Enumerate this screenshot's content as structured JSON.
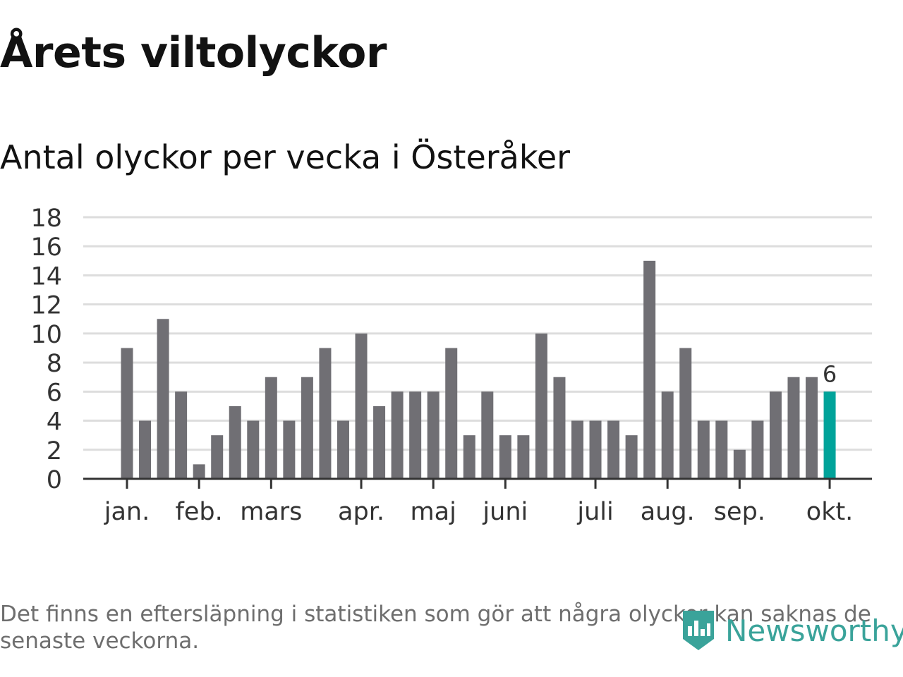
{
  "title": "Årets viltolyckor",
  "subtitle": "Antal olyckor per vecka i Österåker",
  "footnote": "Det finns en eftersläpning i statistiken som gör att några olyckor kan saknas de senaste veckorna.",
  "brand": "Newsworthy",
  "icons": {
    "brand_logo": "bar-chart-badge-icon"
  },
  "colors": {
    "bar": "#706f74",
    "highlight": "#00a39a",
    "grid": "#dddddd",
    "axis": "#333333"
  },
  "chart_data": {
    "type": "bar",
    "title": "Antal olyckor per vecka i Österåker",
    "xlabel": "",
    "ylabel": "",
    "ylim": [
      0,
      18
    ],
    "yticks": [
      "0",
      "2",
      "4",
      "6",
      "8",
      "10",
      "12",
      "14",
      "16",
      "18"
    ],
    "grid": true,
    "values": [
      9,
      4,
      11,
      6,
      1,
      3,
      5,
      4,
      7,
      4,
      7,
      9,
      4,
      10,
      5,
      6,
      6,
      6,
      9,
      3,
      6,
      3,
      3,
      10,
      7,
      4,
      4,
      4,
      3,
      15,
      6,
      9,
      4,
      4,
      2,
      4,
      6,
      7,
      7,
      6
    ],
    "month_labels": [
      {
        "label": "jan.",
        "index": 0
      },
      {
        "label": "feb.",
        "index": 4
      },
      {
        "label": "mars",
        "index": 8
      },
      {
        "label": "apr.",
        "index": 13
      },
      {
        "label": "maj",
        "index": 17
      },
      {
        "label": "juni",
        "index": 21
      },
      {
        "label": "juli",
        "index": 26
      },
      {
        "label": "aug.",
        "index": 30
      },
      {
        "label": "sep.",
        "index": 34
      },
      {
        "label": "okt.",
        "index": 39
      }
    ],
    "highlight_index": 39,
    "highlight_label": "6"
  }
}
